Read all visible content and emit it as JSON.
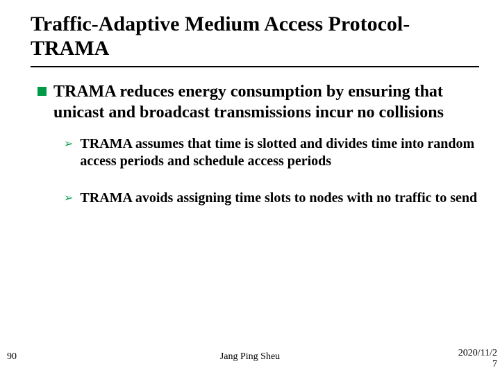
{
  "title": "Traffic-Adaptive Medium Access Protocol- TRAMA",
  "main": {
    "point": "TRAMA reduces energy consumption by ensuring that unicast and broadcast transmissions incur no collisions",
    "subs": [
      "TRAMA assumes that time is slotted and divides time into random access periods and schedule access periods",
      "TRAMA avoids assigning time slots to nodes with no traffic to send"
    ]
  },
  "footer": {
    "page": "90",
    "author": "Jang Ping Sheu",
    "date": "2020/11/2",
    "date_extra": "7"
  },
  "colors": {
    "accent": "#009a46",
    "text": "#000000",
    "background": "#ffffff"
  }
}
